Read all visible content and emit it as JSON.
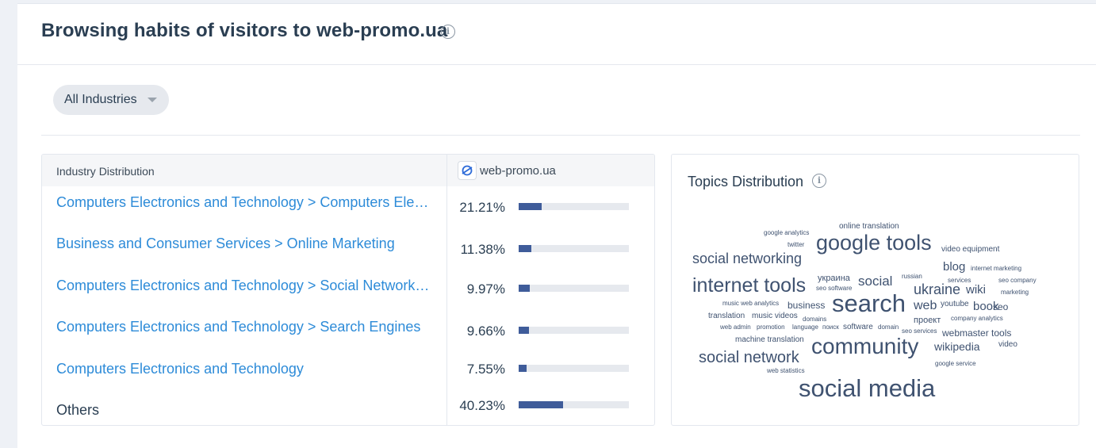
{
  "header": {
    "title": "Browsing habits of visitors to web-promo.ua"
  },
  "filter": {
    "label": "All Industries"
  },
  "table": {
    "col_industry": "Industry Distribution",
    "col_site": "web-promo.ua",
    "rows": [
      {
        "name": "Computers Electronics and Technology > Computers Electronics and Technology",
        "pct": "21.21%",
        "share": 0.2121,
        "link": true
      },
      {
        "name": "Business and Consumer Services > Online Marketing",
        "pct": "11.38%",
        "share": 0.1138,
        "link": true
      },
      {
        "name": "Computers Electronics and Technology > Social Networks and Online Communities",
        "pct": "9.97%",
        "share": 0.0997,
        "link": true
      },
      {
        "name": "Computers Electronics and Technology > Search Engines",
        "pct": "9.66%",
        "share": 0.0966,
        "link": true
      },
      {
        "name": "Computers Electronics and Technology",
        "pct": "7.55%",
        "share": 0.0755,
        "link": true
      },
      {
        "name": "Others",
        "pct": "40.23%",
        "share": 0.4023,
        "link": false
      }
    ]
  },
  "topics": {
    "title": "Topics Distribution",
    "words": [
      "online translation",
      "google analytics",
      "twitter",
      "google tools",
      "video equipment",
      "social networking",
      "blog",
      "internet marketing",
      "internet tools",
      "украина",
      "social",
      "russian",
      "services",
      "seo company",
      "seo software",
      "ukraine",
      "wiki",
      "marketing",
      "music web analytics",
      "business",
      "search",
      "web",
      "youtube",
      "book",
      "seo",
      "translation",
      "music videos",
      "domains",
      "проект",
      "company analytics",
      "web admin",
      "promotion",
      "language",
      "поиск",
      "software",
      "domain",
      "seo services",
      "webmaster tools",
      "machine translation",
      "community",
      "wikipedia",
      "video",
      "social network",
      "web statistics",
      "google service",
      "social media"
    ]
  },
  "colors": {
    "link": "#2d8bd8",
    "bar_fill": "#3f5c9a",
    "bar_track": "#e6e9ee",
    "cloud_text": "#3f5270"
  }
}
